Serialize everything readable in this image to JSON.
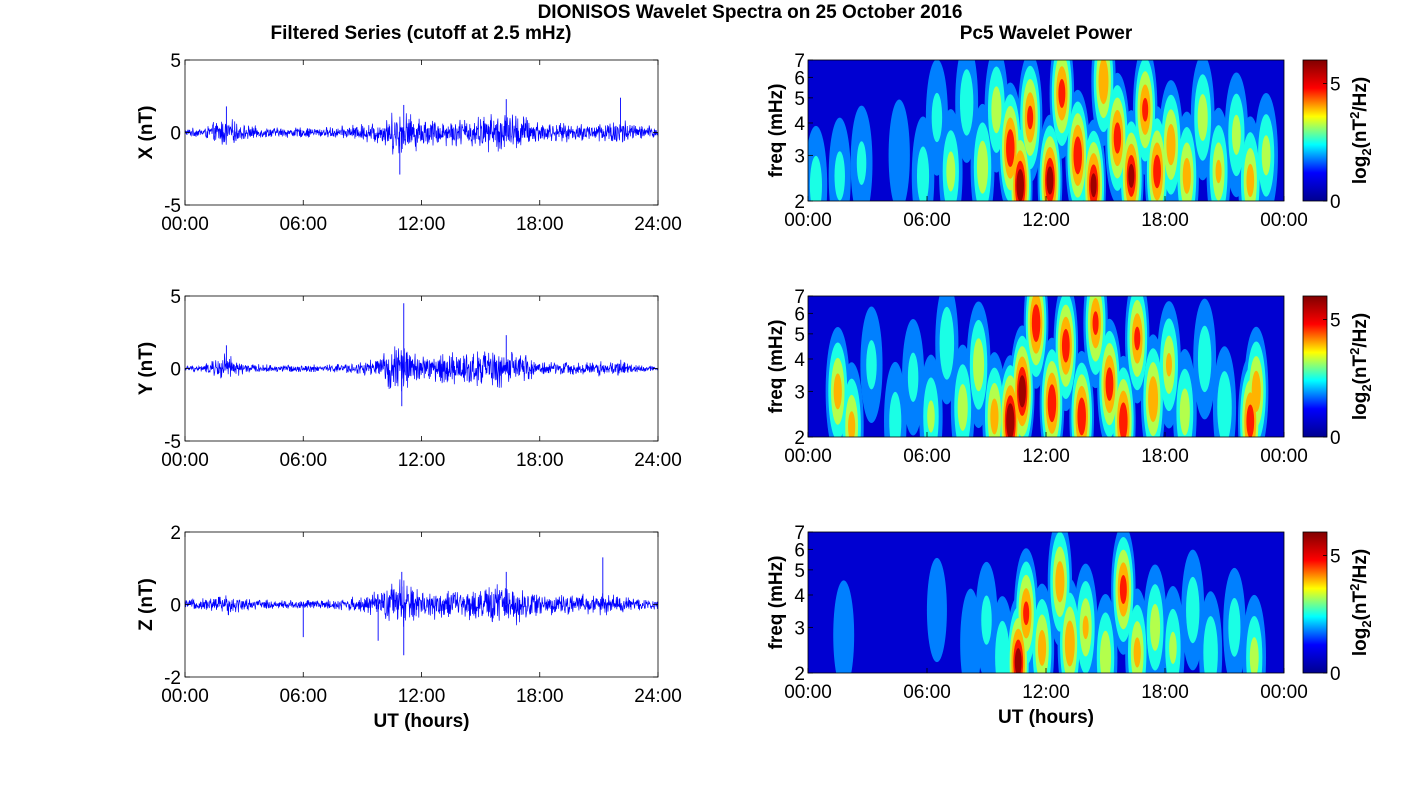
{
  "title": "DIONISOS Wavelet Spectra on 25 October 2016",
  "column_titles": {
    "left": "Filtered Series (cutoff at 2.5 mHz)",
    "right": "Pc5 Wavelet Power"
  },
  "colorbar": {
    "label_main": "log",
    "label_sub": "2",
    "label_paren_open": "(nT",
    "label_sup": "2",
    "label_tail": "/Hz)",
    "colormap": [
      "#00008f",
      "#0000ff",
      "#00ffff",
      "#ffff00",
      "#ff0000",
      "#800000"
    ]
  },
  "chart_data": [
    {
      "type": "line",
      "panel": "X",
      "title": "Filtered Series (cutoff at 2.5 mHz)",
      "ylabel": "X (nT)",
      "xlabel": "",
      "xlim": [
        0,
        24
      ],
      "ylim": [
        -5,
        5
      ],
      "yticks": [
        "5",
        "0",
        "-5"
      ],
      "xticks": [
        "00:00",
        "06:00",
        "12:00",
        "18:00",
        "24:00"
      ],
      "line_color": "#0000ff",
      "envelope": {
        "x": [
          0,
          1,
          2,
          3,
          4,
          5,
          6,
          7,
          8,
          9,
          10,
          10.5,
          11,
          11.5,
          12,
          13,
          14,
          15,
          16,
          17,
          18,
          19,
          20,
          21,
          22,
          23,
          24
        ],
        "amplitude": [
          0.3,
          0.4,
          1.2,
          0.6,
          0.4,
          0.4,
          0.4,
          0.4,
          0.5,
          0.7,
          1.0,
          1.6,
          1.9,
          1.5,
          1.2,
          1.0,
          1.1,
          1.3,
          1.7,
          1.5,
          0.9,
          0.7,
          0.7,
          0.8,
          1.2,
          0.6,
          0.5
        ]
      },
      "peaks": [
        {
          "x": 2.1,
          "y": 1.8
        },
        {
          "x": 10.9,
          "y": -2.9
        },
        {
          "x": 11.1,
          "y": 1.9
        },
        {
          "x": 16.3,
          "y": 2.3
        },
        {
          "x": 22.1,
          "y": 2.4
        }
      ]
    },
    {
      "type": "line",
      "panel": "Y",
      "title": "",
      "ylabel": "Y (nT)",
      "xlabel": "",
      "xlim": [
        0,
        24
      ],
      "ylim": [
        -5,
        5
      ],
      "yticks": [
        "5",
        "0",
        "-5"
      ],
      "xticks": [
        "00:00",
        "06:00",
        "12:00",
        "18:00",
        "24:00"
      ],
      "line_color": "#0000ff",
      "envelope": {
        "x": [
          0,
          1,
          2,
          3,
          4,
          5,
          6,
          7,
          8,
          9,
          10,
          10.5,
          11,
          11.5,
          12,
          13,
          14,
          15,
          16,
          17,
          18,
          19,
          20,
          21,
          22,
          23,
          24
        ],
        "amplitude": [
          0.2,
          0.3,
          1.2,
          0.4,
          0.3,
          0.3,
          0.3,
          0.3,
          0.4,
          0.5,
          1.0,
          1.8,
          2.2,
          1.4,
          1.1,
          1.2,
          1.4,
          1.5,
          1.6,
          1.2,
          0.6,
          0.5,
          0.5,
          0.6,
          0.7,
          0.3,
          0.2
        ]
      },
      "peaks": [
        {
          "x": 2.1,
          "y": 1.6
        },
        {
          "x": 11.1,
          "y": 4.5
        },
        {
          "x": 11.0,
          "y": -2.6
        },
        {
          "x": 16.3,
          "y": 2.3
        }
      ]
    },
    {
      "type": "line",
      "panel": "Z",
      "title": "",
      "ylabel": "Z (nT)",
      "xlabel": "UT (hours)",
      "xlim": [
        0,
        24
      ],
      "ylim": [
        -2,
        2
      ],
      "yticks": [
        "2",
        "0",
        "-2"
      ],
      "xticks": [
        "00:00",
        "06:00",
        "12:00",
        "18:00",
        "24:00"
      ],
      "line_color": "#0000ff",
      "envelope": {
        "x": [
          0,
          1,
          2,
          3,
          4,
          5,
          6,
          7,
          8,
          9,
          10,
          10.5,
          11,
          11.5,
          12,
          13,
          14,
          15,
          16,
          17,
          18,
          19,
          20,
          21,
          22,
          23,
          24
        ],
        "amplitude": [
          0.15,
          0.2,
          0.35,
          0.2,
          0.15,
          0.15,
          0.15,
          0.15,
          0.2,
          0.25,
          0.45,
          0.7,
          0.85,
          0.6,
          0.5,
          0.45,
          0.45,
          0.5,
          0.7,
          0.55,
          0.4,
          0.3,
          0.3,
          0.35,
          0.3,
          0.2,
          0.15
        ]
      },
      "peaks": [
        {
          "x": 6.0,
          "y": -0.9
        },
        {
          "x": 11.0,
          "y": 0.9
        },
        {
          "x": 11.1,
          "y": -1.4
        },
        {
          "x": 9.8,
          "y": -1.0
        },
        {
          "x": 21.2,
          "y": 1.3
        },
        {
          "x": 16.3,
          "y": 0.9
        }
      ]
    },
    {
      "type": "heatmap",
      "panel": "X",
      "title": "Pc5 Wavelet Power",
      "ylabel": "freq (mHz)",
      "xlabel": "",
      "xlim": [
        0,
        24
      ],
      "ylim": [
        2,
        7
      ],
      "yscale": "log",
      "yticks": [
        2,
        3,
        4,
        5,
        6,
        7
      ],
      "xticks": [
        "00:00",
        "06:00",
        "12:00",
        "18:00",
        "00:00"
      ],
      "clim": [
        0,
        6
      ],
      "colorbar_ticks": [
        0,
        5
      ],
      "hot_spots": [
        {
          "t": 0.4,
          "f": 2.3,
          "p": 2.8
        },
        {
          "t": 1.6,
          "f": 2.5,
          "p": 2.6
        },
        {
          "t": 2.7,
          "f": 2.8,
          "p": 2.5
        },
        {
          "t": 4.6,
          "f": 3.0,
          "p": 2.3
        },
        {
          "t": 5.8,
          "f": 2.5,
          "p": 2.8
        },
        {
          "t": 6.5,
          "f": 4.2,
          "p": 2.6
        },
        {
          "t": 7.2,
          "f": 2.6,
          "p": 3.6
        },
        {
          "t": 8.0,
          "f": 4.8,
          "p": 3.0
        },
        {
          "t": 8.8,
          "f": 2.7,
          "p": 4.0
        },
        {
          "t": 9.5,
          "f": 4.5,
          "p": 3.8
        },
        {
          "t": 10.2,
          "f": 3.2,
          "p": 5.8
        },
        {
          "t": 10.7,
          "f": 2.3,
          "p": 6.4
        },
        {
          "t": 11.2,
          "f": 4.2,
          "p": 5.2
        },
        {
          "t": 12.2,
          "f": 2.4,
          "p": 6.2
        },
        {
          "t": 12.8,
          "f": 5.2,
          "p": 5.4
        },
        {
          "t": 13.6,
          "f": 3.0,
          "p": 5.8
        },
        {
          "t": 14.4,
          "f": 2.3,
          "p": 6.0
        },
        {
          "t": 14.9,
          "f": 5.8,
          "p": 5.0
        },
        {
          "t": 15.6,
          "f": 3.5,
          "p": 5.5
        },
        {
          "t": 16.3,
          "f": 2.5,
          "p": 6.0
        },
        {
          "t": 17.0,
          "f": 4.5,
          "p": 5.2
        },
        {
          "t": 17.6,
          "f": 2.6,
          "p": 5.6
        },
        {
          "t": 18.3,
          "f": 3.3,
          "p": 4.8
        },
        {
          "t": 19.1,
          "f": 2.5,
          "p": 4.6
        },
        {
          "t": 19.9,
          "f": 4.2,
          "p": 3.8
        },
        {
          "t": 20.7,
          "f": 2.6,
          "p": 4.2
        },
        {
          "t": 21.6,
          "f": 3.6,
          "p": 3.6
        },
        {
          "t": 22.3,
          "f": 2.4,
          "p": 4.5
        },
        {
          "t": 23.1,
          "f": 3.0,
          "p": 3.6
        }
      ]
    },
    {
      "type": "heatmap",
      "panel": "Y",
      "title": "",
      "ylabel": "freq (mHz)",
      "xlabel": "",
      "xlim": [
        0,
        24
      ],
      "ylim": [
        2,
        7
      ],
      "yscale": "log",
      "yticks": [
        2,
        3,
        4,
        5,
        6,
        7
      ],
      "xticks": [
        "00:00",
        "06:00",
        "12:00",
        "18:00",
        "00:00"
      ],
      "clim": [
        0,
        6
      ],
      "colorbar_ticks": [
        0,
        5
      ],
      "hot_spots": [
        {
          "t": 1.5,
          "f": 3.0,
          "p": 4.6
        },
        {
          "t": 2.2,
          "f": 2.2,
          "p": 4.4
        },
        {
          "t": 3.2,
          "f": 3.8,
          "p": 2.6
        },
        {
          "t": 4.4,
          "f": 2.3,
          "p": 2.8
        },
        {
          "t": 5.3,
          "f": 3.4,
          "p": 2.6
        },
        {
          "t": 6.2,
          "f": 2.4,
          "p": 3.4
        },
        {
          "t": 7.0,
          "f": 4.6,
          "p": 3.2
        },
        {
          "t": 7.8,
          "f": 2.6,
          "p": 3.8
        },
        {
          "t": 8.6,
          "f": 3.8,
          "p": 4.0
        },
        {
          "t": 9.4,
          "f": 2.4,
          "p": 4.6
        },
        {
          "t": 10.2,
          "f": 2.3,
          "p": 6.6
        },
        {
          "t": 10.8,
          "f": 3.0,
          "p": 6.4
        },
        {
          "t": 11.5,
          "f": 5.5,
          "p": 5.8
        },
        {
          "t": 12.3,
          "f": 2.7,
          "p": 5.8
        },
        {
          "t": 13.0,
          "f": 4.5,
          "p": 5.6
        },
        {
          "t": 13.8,
          "f": 2.4,
          "p": 5.8
        },
        {
          "t": 14.5,
          "f": 5.5,
          "p": 5.2
        },
        {
          "t": 15.2,
          "f": 3.2,
          "p": 5.6
        },
        {
          "t": 15.9,
          "f": 2.3,
          "p": 5.8
        },
        {
          "t": 16.6,
          "f": 4.8,
          "p": 5.2
        },
        {
          "t": 17.4,
          "f": 2.8,
          "p": 5.0
        },
        {
          "t": 18.2,
          "f": 3.8,
          "p": 4.2
        },
        {
          "t": 19.0,
          "f": 2.5,
          "p": 3.8
        },
        {
          "t": 20.0,
          "f": 4.0,
          "p": 3.0
        },
        {
          "t": 21.0,
          "f": 2.6,
          "p": 3.2
        },
        {
          "t": 22.3,
          "f": 2.3,
          "p": 5.6
        },
        {
          "t": 22.6,
          "f": 3.0,
          "p": 4.8
        }
      ]
    },
    {
      "type": "heatmap",
      "panel": "Z",
      "title": "",
      "ylabel": "freq (mHz)",
      "xlabel": "UT (hours)",
      "xlim": [
        0,
        24
      ],
      "ylim": [
        2,
        7
      ],
      "yscale": "log",
      "yticks": [
        2,
        3,
        4,
        5,
        6,
        7
      ],
      "xticks": [
        "00:00",
        "06:00",
        "12:00",
        "18:00",
        "00:00"
      ],
      "clim": [
        0,
        6
      ],
      "colorbar_ticks": [
        0,
        5
      ],
      "hot_spots": [
        {
          "t": 1.8,
          "f": 2.8,
          "p": 2.2
        },
        {
          "t": 6.5,
          "f": 3.5,
          "p": 2.0
        },
        {
          "t": 8.2,
          "f": 2.6,
          "p": 2.2
        },
        {
          "t": 9.0,
          "f": 3.2,
          "p": 2.6
        },
        {
          "t": 9.8,
          "f": 2.3,
          "p": 3.2
        },
        {
          "t": 10.6,
          "f": 2.2,
          "p": 6.2
        },
        {
          "t": 11.0,
          "f": 3.4,
          "p": 5.2
        },
        {
          "t": 11.8,
          "f": 2.5,
          "p": 4.6
        },
        {
          "t": 12.7,
          "f": 4.5,
          "p": 4.8
        },
        {
          "t": 13.2,
          "f": 2.6,
          "p": 5.0
        },
        {
          "t": 14.0,
          "f": 3.0,
          "p": 4.2
        },
        {
          "t": 15.0,
          "f": 2.3,
          "p": 4.0
        },
        {
          "t": 15.9,
          "f": 4.2,
          "p": 5.4
        },
        {
          "t": 16.6,
          "f": 2.4,
          "p": 4.4
        },
        {
          "t": 17.5,
          "f": 3.0,
          "p": 3.8
        },
        {
          "t": 18.4,
          "f": 2.5,
          "p": 3.4
        },
        {
          "t": 19.4,
          "f": 3.5,
          "p": 3.0
        },
        {
          "t": 20.3,
          "f": 2.4,
          "p": 3.2
        },
        {
          "t": 21.5,
          "f": 3.0,
          "p": 2.8
        },
        {
          "t": 22.5,
          "f": 2.3,
          "p": 3.6
        }
      ]
    }
  ]
}
